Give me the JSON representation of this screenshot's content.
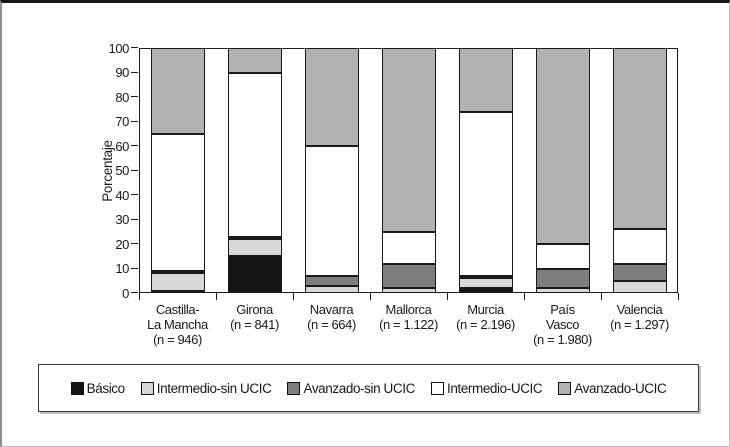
{
  "chart_data": {
    "type": "bar",
    "stacked": true,
    "orientation": "vertical",
    "title": "",
    "xlabel": "",
    "ylabel": "Porcentaje",
    "ylim": [
      0,
      100
    ],
    "ytick_step": 10,
    "yticks": [
      0,
      10,
      20,
      30,
      40,
      50,
      60,
      70,
      80,
      90,
      100
    ],
    "grid": false,
    "legend_position": "bottom",
    "categories": [
      "Castilla-La Mancha (n = 946)",
      "Girona (n = 841)",
      "Navarra (n = 664)",
      "Mallorca (n = 1.122)",
      "Murcia (n = 2.196)",
      "País Vasco (n = 1.980)",
      "Valencia (n = 1.297)"
    ],
    "category_label_lines": [
      [
        "Castilla-",
        "La Mancha",
        "(n = 946)"
      ],
      [
        "Girona",
        "(n = 841)"
      ],
      [
        "Navarra",
        "(n = 664)"
      ],
      [
        "Mallorca",
        "(n = 1.122)"
      ],
      [
        "Murcia",
        "(n = 2.196)"
      ],
      [
        "País",
        "Vasco",
        "(n = 1.980)"
      ],
      [
        "Valencia",
        "(n = 1.297)"
      ]
    ],
    "series": [
      {
        "name": "Básico",
        "color": "#141414",
        "values": [
          1,
          15,
          0,
          0,
          2,
          0,
          0
        ]
      },
      {
        "name": "Intermedio-sin UCIC",
        "color": "#d8d8d8",
        "values": [
          7,
          7,
          3,
          2,
          4,
          2,
          5
        ]
      },
      {
        "name": "Avanzado-sin UCIC",
        "color": "#7e7e7e",
        "values": [
          1,
          1,
          4,
          10,
          1,
          8,
          7
        ]
      },
      {
        "name": "Intermedio-UCIC",
        "color": "#ffffff",
        "values": [
          56,
          67,
          53,
          13,
          67,
          10,
          14
        ]
      },
      {
        "name": "Avanzado-UCIC",
        "color": "#b2b2b2",
        "values": [
          35,
          10,
          40,
          75,
          26,
          80,
          74
        ]
      }
    ],
    "colors": {
      "axis": "#1c1c1c",
      "segment_border": "#1a1a1a",
      "background": "#ffffff"
    }
  }
}
